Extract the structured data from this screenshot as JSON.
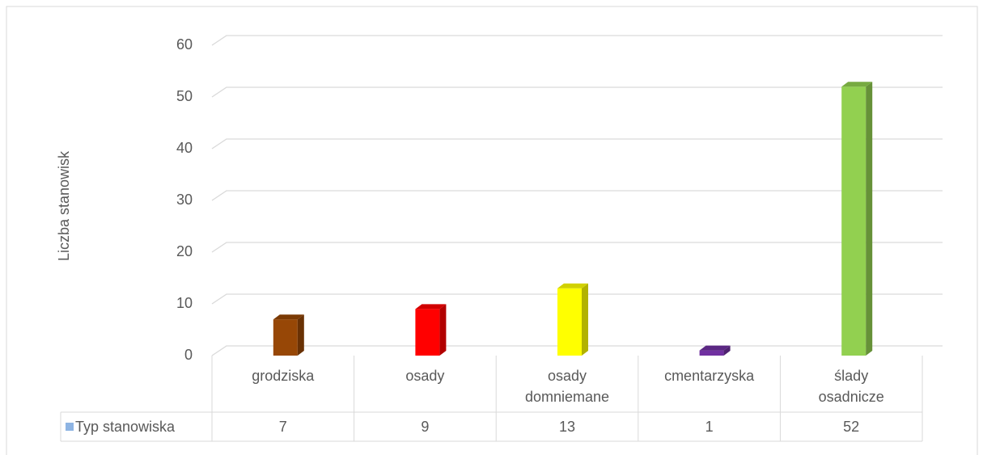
{
  "chart_data": {
    "type": "bar3d",
    "y_label": "Liczba stanowisk",
    "categories": [
      "grodziska",
      "osady",
      "osady domniemane",
      "cmentarzyska",
      "ślady osadnicze"
    ],
    "series": [
      {
        "name": "Typ stanowiska",
        "color": "#8eb4e3",
        "values": [
          7,
          9,
          13,
          1,
          52
        ]
      }
    ],
    "bar_colors": [
      "#974706",
      "#ff0000",
      "#ffff00",
      "#7030a0",
      "#92d050"
    ],
    "ylim": [
      0,
      60
    ],
    "yticks": [
      0,
      10,
      20,
      30,
      40,
      50,
      60
    ],
    "grid": true
  }
}
